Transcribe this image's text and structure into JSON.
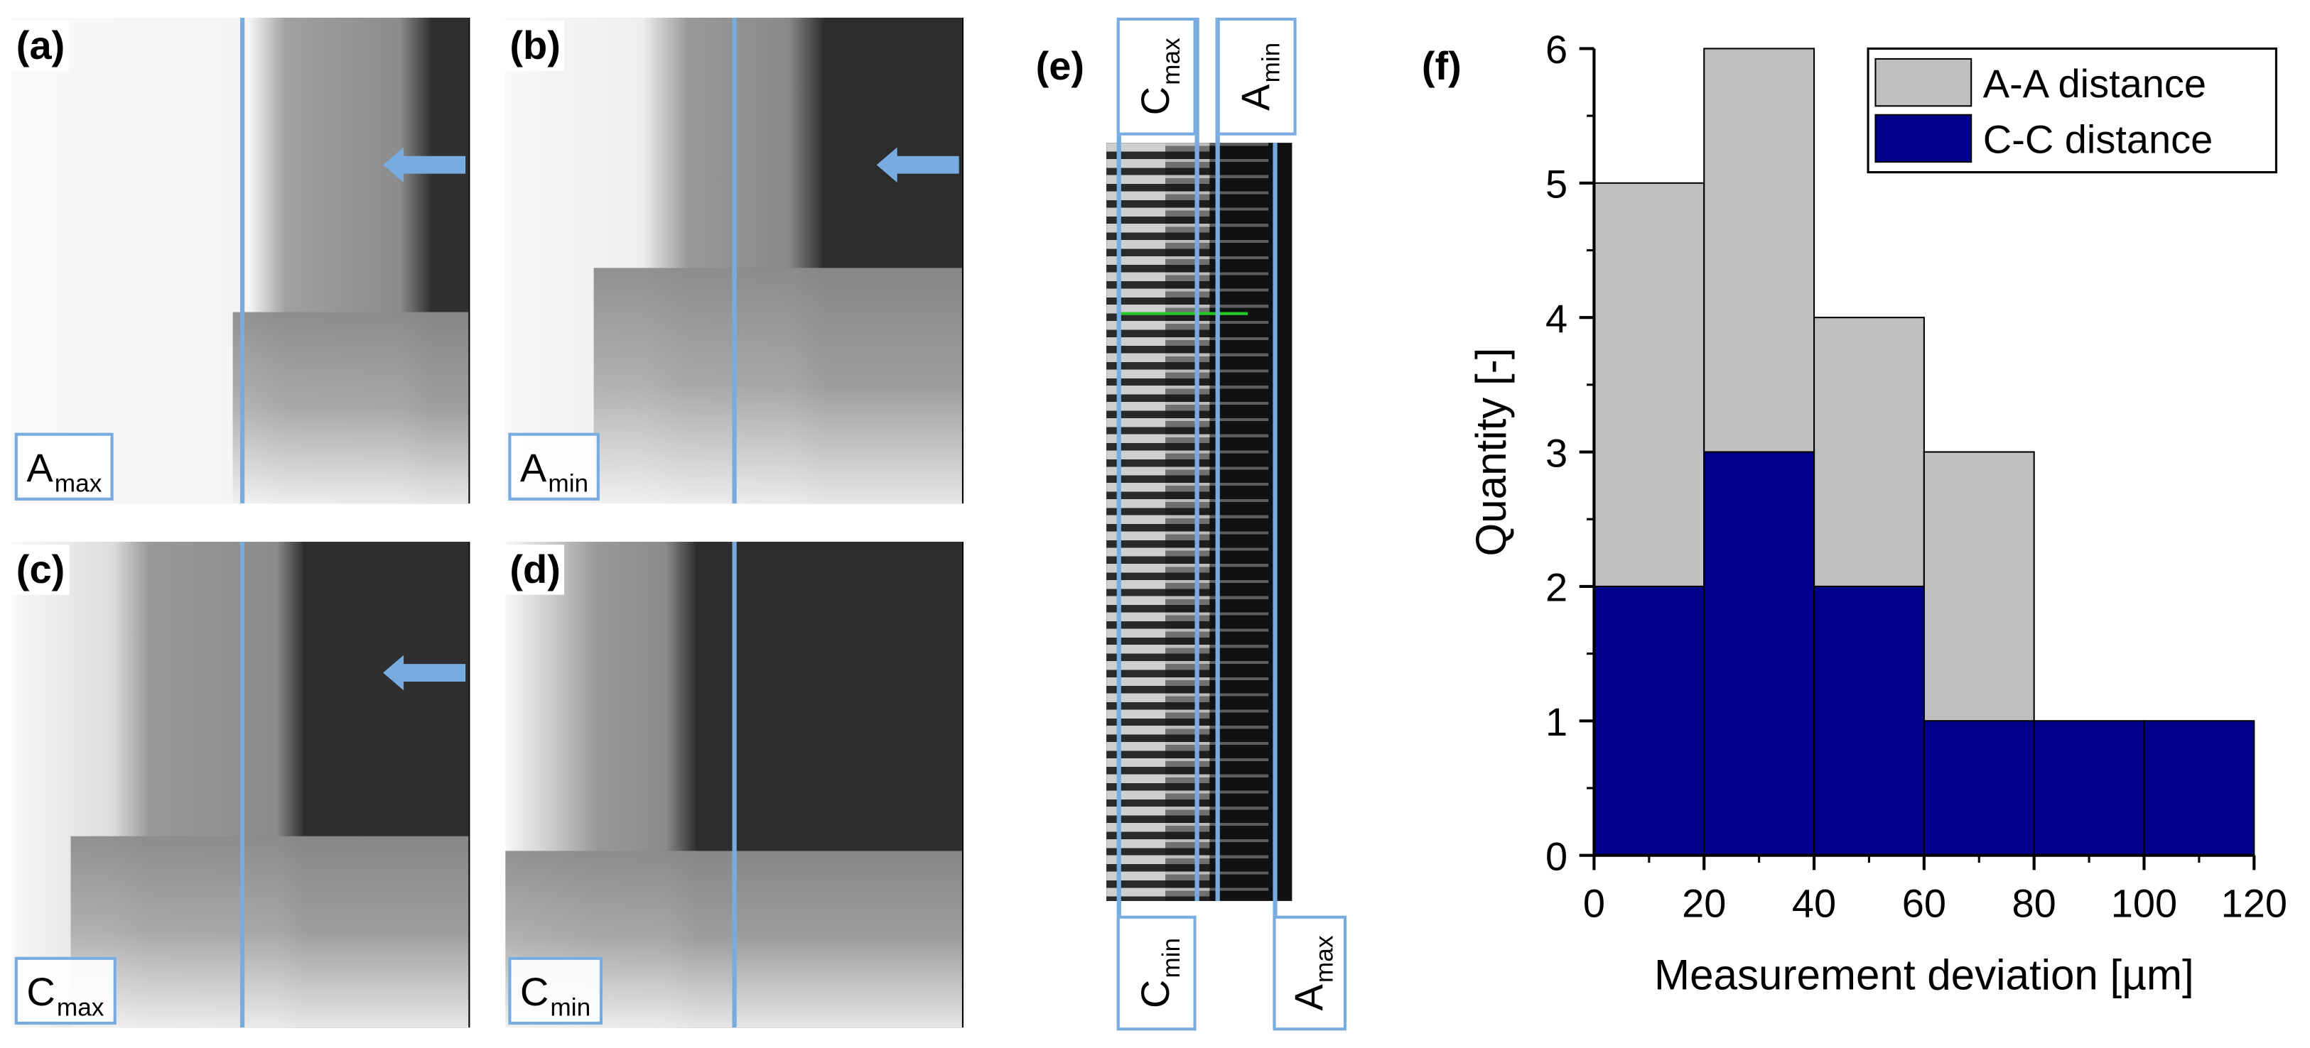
{
  "panels": {
    "a": {
      "tag": "(a)",
      "label_main": "A",
      "label_sub": "max",
      "has_arrow": true
    },
    "b": {
      "tag": "(b)",
      "label_main": "A",
      "label_sub": "min",
      "has_arrow": true
    },
    "c": {
      "tag": "(c)",
      "label_main": "C",
      "label_sub": "max",
      "has_arrow": true
    },
    "d": {
      "tag": "(d)",
      "label_main": "C",
      "label_sub": "min",
      "has_arrow": false
    },
    "e": {
      "tag": "(e)",
      "top_labels": [
        {
          "main": "C",
          "sub": "max"
        },
        {
          "main": "A",
          "sub": "min"
        }
      ],
      "bottom_labels": [
        {
          "main": "C",
          "sub": "min"
        },
        {
          "main": "A",
          "sub": "max"
        }
      ]
    },
    "f": {
      "tag": "(f)"
    }
  },
  "colors": {
    "marker_blue": "#78ace0",
    "aa_gray": "#c0c0c0",
    "cc_navy": "#00008b",
    "measure_green": "#22cc22"
  },
  "chart_data": {
    "type": "bar",
    "subtype": "overlapping histogram",
    "bins": [
      [
        0,
        20
      ],
      [
        20,
        40
      ],
      [
        40,
        60
      ],
      [
        60,
        80
      ],
      [
        80,
        100
      ],
      [
        100,
        120
      ]
    ],
    "series": [
      {
        "name": "A-A distance",
        "color": "#c0c0c0",
        "values": [
          5,
          6,
          4,
          3,
          0,
          0
        ]
      },
      {
        "name": "C-C distance",
        "color": "#00008b",
        "values": [
          2,
          3,
          2,
          1,
          1,
          1
        ]
      }
    ],
    "xlabel": "Measurement deviation [µm]",
    "ylabel": "Quantity [-]",
    "xlim": [
      0,
      120
    ],
    "ylim": [
      0,
      6
    ],
    "xticks": [
      "0",
      "20",
      "40",
      "60",
      "80",
      "100",
      "120"
    ],
    "yticks": [
      "0",
      "1",
      "2",
      "3",
      "4",
      "5",
      "6"
    ],
    "grid": false,
    "legend": "top-right"
  }
}
